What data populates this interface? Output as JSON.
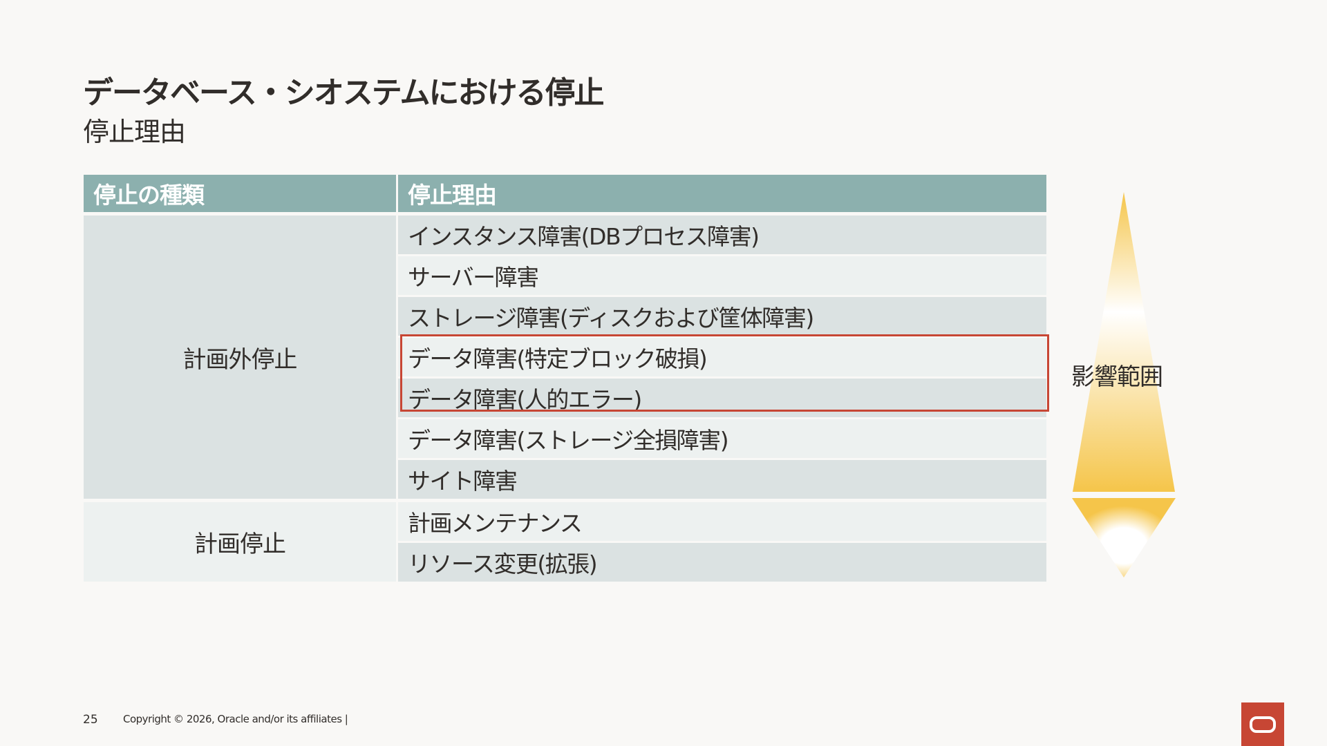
{
  "slide": {
    "title": "データベース・シオステムにおける停止",
    "subtitle": "停止理由"
  },
  "table": {
    "headers": [
      "停止の種類",
      "停止理由"
    ],
    "groups": [
      {
        "category": "計画外停止",
        "reasons": [
          "インスタンス障害(DBプロセス障害)",
          "サーバー障害",
          "ストレージ障害(ディスクおよび筐体障害)",
          "データ障害(特定ブロック破損)",
          "データ障害(人的エラー)",
          "データ障害(ストレージ全損障害)",
          "サイト障害"
        ]
      },
      {
        "category": "計画停止",
        "reasons": [
          "計画メンテナンス",
          "リソース変更(拡張)"
        ]
      }
    ],
    "highlighted_rows": [
      "データ障害(特定ブロック破損)",
      "データ障害(人的エラー)"
    ]
  },
  "impact": {
    "label": "影響範囲"
  },
  "footer": {
    "page_number": "25",
    "copyright": "Copyright © 2026, Oracle and/or its affiliates  |"
  },
  "colors": {
    "header_bg": "#8cb0ae",
    "row_dark": "#dbe2e2",
    "row_light": "#edf1f0",
    "highlight_border": "#c74634",
    "brand_red": "#c74634",
    "gradient_gold": "#f5c54a"
  },
  "icons": {
    "impact_graphic": "impact-scope-beam-icon",
    "brand_logo": "oracle-logo-icon"
  }
}
